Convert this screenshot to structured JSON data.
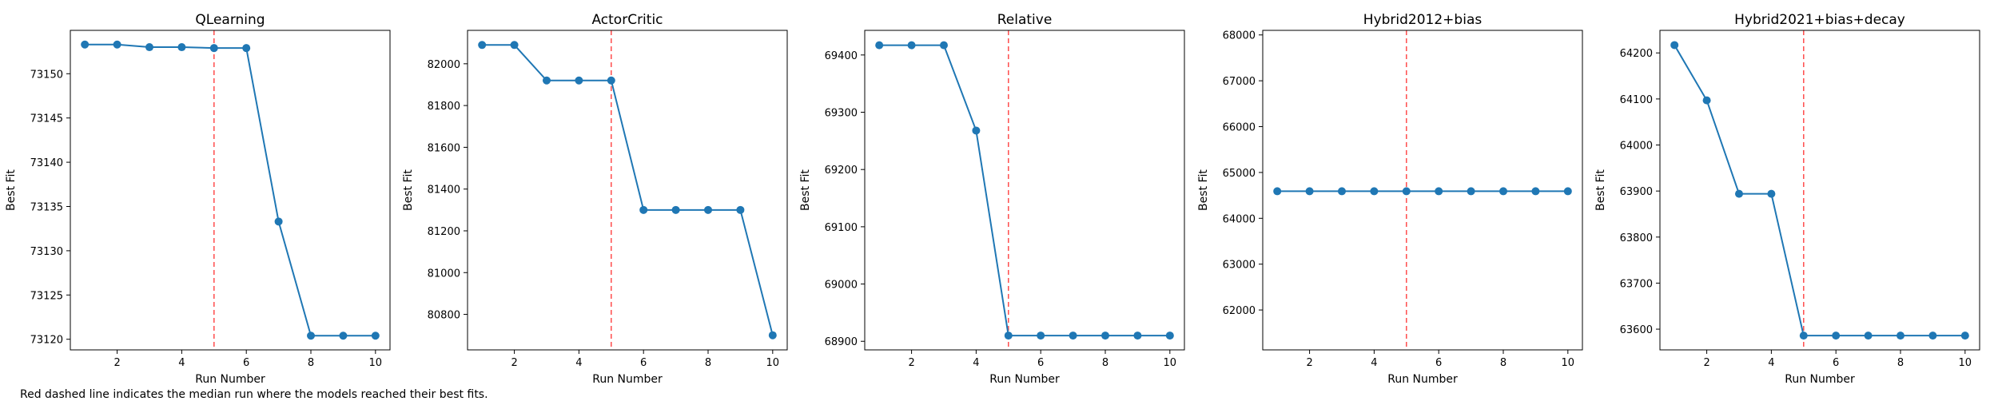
{
  "chart_data": [
    {
      "type": "line",
      "title": "QLearning",
      "xlabel": "Run Number",
      "ylabel": "Best Fit",
      "x": [
        1,
        2,
        3,
        4,
        5,
        6,
        7,
        8,
        9,
        10
      ],
      "values": [
        73153.3,
        73153.3,
        73153.0,
        73153.0,
        73152.9,
        73152.9,
        73133.3,
        73120.4,
        73120.4,
        73120.4
      ],
      "xlim": [
        0.55,
        10.45
      ],
      "ylim": [
        73118.8,
        73154.9
      ],
      "xticks": [
        2,
        4,
        6,
        8,
        10
      ],
      "yticks": [
        73120,
        73125,
        73130,
        73135,
        73140,
        73145,
        73150
      ],
      "median_run": 5
    },
    {
      "type": "line",
      "title": "ActorCritic",
      "xlabel": "Run Number",
      "ylabel": "Best Fit",
      "x": [
        1,
        2,
        3,
        4,
        5,
        6,
        7,
        8,
        9,
        10
      ],
      "values": [
        82090,
        82090,
        81920,
        81920,
        81920,
        81300,
        81300,
        81300,
        81300,
        80700
      ],
      "xlim": [
        0.55,
        10.45
      ],
      "ylim": [
        80630,
        82160
      ],
      "xticks": [
        2,
        4,
        6,
        8,
        10
      ],
      "yticks": [
        80800,
        81000,
        81200,
        81400,
        81600,
        81800,
        82000
      ],
      "median_run": 5
    },
    {
      "type": "line",
      "title": "Relative",
      "xlabel": "Run Number",
      "ylabel": "Best Fit",
      "x": [
        1,
        2,
        3,
        4,
        5,
        6,
        7,
        8,
        9,
        10
      ],
      "values": [
        69417,
        69417,
        69417,
        69268,
        68910,
        68910,
        68910,
        68910,
        68910,
        68910
      ],
      "xlim": [
        0.55,
        10.45
      ],
      "ylim": [
        68885,
        69443
      ],
      "xticks": [
        2,
        4,
        6,
        8,
        10
      ],
      "yticks": [
        68900,
        69000,
        69100,
        69200,
        69300,
        69400
      ],
      "median_run": 5
    },
    {
      "type": "line",
      "title": "Hybrid2012+bias",
      "xlabel": "Run Number",
      "ylabel": "Best Fit",
      "x": [
        1,
        2,
        3,
        4,
        5,
        6,
        7,
        8,
        9,
        10
      ],
      "values": [
        64590,
        64590,
        64590,
        64590,
        64590,
        64590,
        64590,
        64590,
        64590,
        64590
      ],
      "xlim": [
        0.55,
        10.45
      ],
      "ylim": [
        61130,
        68100
      ],
      "xticks": [
        2,
        4,
        6,
        8,
        10
      ],
      "yticks": [
        62000,
        63000,
        64000,
        65000,
        66000,
        67000,
        68000
      ],
      "median_run": 5
    },
    {
      "type": "line",
      "title": "Hybrid2021+bias+decay",
      "xlabel": "Run Number",
      "ylabel": "Best Fit",
      "x": [
        1,
        2,
        3,
        4,
        5,
        6,
        7,
        8,
        9,
        10
      ],
      "values": [
        64217,
        64097,
        63894,
        63894,
        63586,
        63586,
        63586,
        63586,
        63586,
        63586
      ],
      "xlim": [
        0.55,
        10.45
      ],
      "ylim": [
        63555,
        64249
      ],
      "xticks": [
        2,
        4,
        6,
        8,
        10
      ],
      "yticks": [
        63600,
        63700,
        63800,
        63900,
        64000,
        64100,
        64200
      ],
      "median_run": 5
    }
  ],
  "caption": "Red dashed line indicates the median run where the models reached their best fits.",
  "colors": {
    "series": "#1f77b4",
    "median_line": "#ff0000"
  }
}
